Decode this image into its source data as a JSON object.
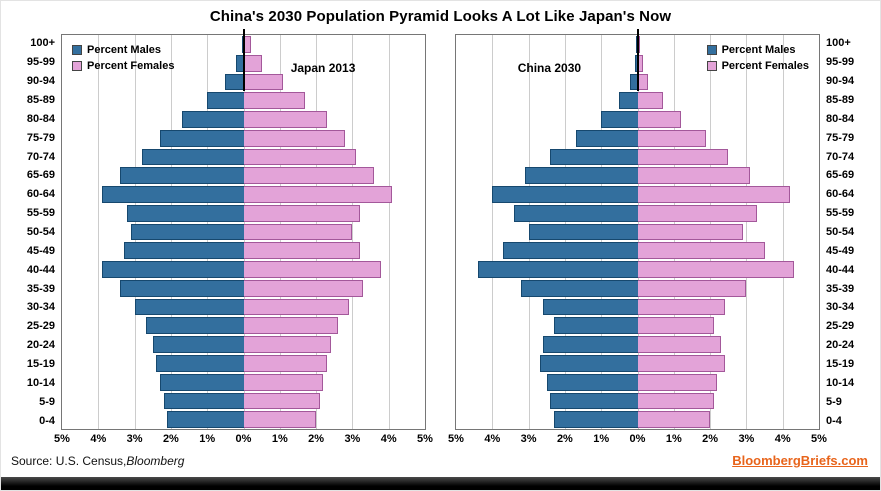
{
  "title": "China's 2030 Population Pyramid Looks A Lot Like Japan's Now",
  "footer": {
    "source_prefix": "Source: U.S. Census,",
    "source_brand": "Bloomberg",
    "site": "BloombergBriefs.com"
  },
  "colors": {
    "male": "#336f9e",
    "male_border": "#16486e",
    "female": "#e3a3d8",
    "female_border": "#a3589a",
    "site_text": "#e8641b"
  },
  "chart_data": {
    "type": "bar",
    "subtype": "population-pyramid-pair",
    "title": "China's 2030 Population Pyramid Looks A Lot Like Japan's Now",
    "x_axis": {
      "min": -5,
      "max": 5,
      "unit": "%",
      "tick_labels": [
        "5%",
        "4%",
        "3%",
        "2%",
        "1%",
        "0%",
        "1%",
        "2%",
        "3%",
        "4%",
        "5%"
      ]
    },
    "grid": "vertical-gridlines-on",
    "legend": {
      "males": "Percent Males",
      "females": "Percent Females"
    },
    "age_groups_top_to_bottom": [
      "100+",
      "95-99",
      "90-94",
      "85-89",
      "80-84",
      "75-79",
      "70-74",
      "65-69",
      "60-64",
      "55-59",
      "50-54",
      "45-49",
      "40-44",
      "35-39",
      "30-34",
      "25-29",
      "20-24",
      "15-19",
      "10-14",
      "5-9",
      "0-4"
    ],
    "pyramids": [
      {
        "label": "Japan 2013",
        "legend_position": "top-left",
        "males_pct": [
          0.05,
          0.2,
          0.5,
          1.0,
          1.7,
          2.3,
          2.8,
          3.4,
          3.9,
          3.2,
          3.1,
          3.3,
          3.9,
          3.4,
          3.0,
          2.7,
          2.5,
          2.4,
          2.3,
          2.2,
          2.1
        ],
        "females_pct": [
          0.2,
          0.5,
          1.1,
          1.7,
          2.3,
          2.8,
          3.1,
          3.6,
          4.1,
          3.2,
          3.0,
          3.2,
          3.8,
          3.3,
          2.9,
          2.6,
          2.4,
          2.3,
          2.2,
          2.1,
          2.0
        ]
      },
      {
        "label": "China 2030",
        "legend_position": "top-right",
        "males_pct": [
          0.03,
          0.08,
          0.2,
          0.5,
          1.0,
          1.7,
          2.4,
          3.1,
          4.0,
          3.4,
          3.0,
          3.7,
          4.4,
          3.2,
          2.6,
          2.3,
          2.6,
          2.7,
          2.5,
          2.4,
          2.3
        ],
        "females_pct": [
          0.08,
          0.15,
          0.3,
          0.7,
          1.2,
          1.9,
          2.5,
          3.1,
          4.2,
          3.3,
          2.9,
          3.5,
          4.3,
          3.0,
          2.4,
          2.1,
          2.3,
          2.4,
          2.2,
          2.1,
          2.0
        ]
      }
    ]
  }
}
